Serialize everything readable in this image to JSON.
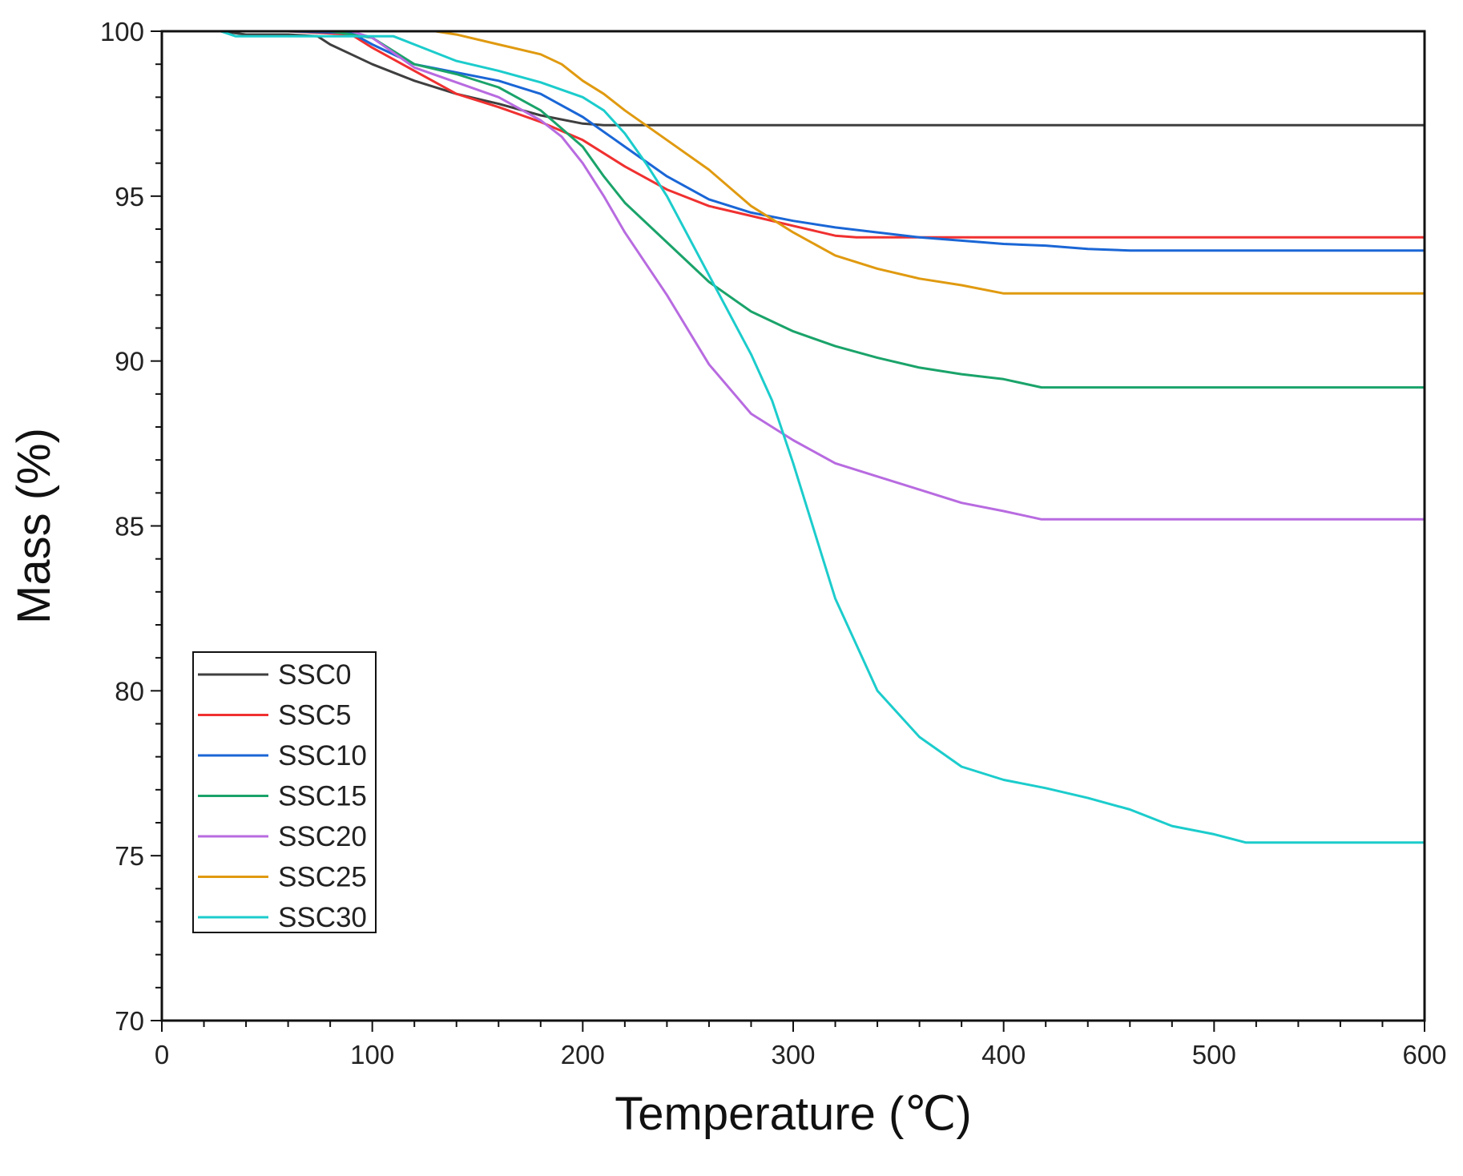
{
  "chart_data": {
    "type": "line",
    "title": "",
    "xlabel": "Temperature (℃)",
    "ylabel": "Mass (%)",
    "xlim": [
      0,
      600
    ],
    "ylim": [
      70,
      100
    ],
    "xticks": [
      0,
      100,
      200,
      300,
      400,
      500,
      600
    ],
    "yticks": [
      70,
      75,
      80,
      85,
      90,
      95,
      100
    ],
    "grid": false,
    "legend_position": "bottom-left",
    "series": [
      {
        "name": "SSC0",
        "color": "#3f3f3f",
        "x": [
          28,
          40,
          60,
          74,
          80,
          90,
          100,
          120,
          140,
          160,
          180,
          200,
          210,
          220,
          300,
          400,
          500,
          600
        ],
        "y": [
          100,
          99.9,
          99.9,
          99.85,
          99.6,
          99.3,
          99.0,
          98.5,
          98.1,
          97.8,
          97.45,
          97.2,
          97.15,
          97.15,
          97.15,
          97.15,
          97.15,
          97.15
        ]
      },
      {
        "name": "SSC5",
        "color": "#f03030",
        "x": [
          28,
          60,
          90,
          100,
          120,
          140,
          160,
          180,
          200,
          220,
          240,
          260,
          280,
          300,
          320,
          330,
          400,
          500,
          600
        ],
        "y": [
          100,
          100,
          99.9,
          99.5,
          98.8,
          98.1,
          97.7,
          97.25,
          96.7,
          95.9,
          95.2,
          94.7,
          94.4,
          94.1,
          93.8,
          93.75,
          93.75,
          93.75,
          93.75
        ]
      },
      {
        "name": "SSC10",
        "color": "#1a66d6",
        "x": [
          28,
          60,
          90,
          100,
          120,
          140,
          160,
          180,
          200,
          220,
          240,
          260,
          280,
          300,
          320,
          340,
          360,
          380,
          400,
          420,
          440,
          460,
          500,
          600
        ],
        "y": [
          100,
          100,
          99.95,
          99.6,
          99.0,
          98.75,
          98.5,
          98.1,
          97.4,
          96.5,
          95.6,
          94.9,
          94.5,
          94.25,
          94.05,
          93.9,
          93.75,
          93.65,
          93.55,
          93.5,
          93.4,
          93.35,
          93.35,
          93.35
        ]
      },
      {
        "name": "SSC15",
        "color": "#1aa36a",
        "x": [
          28,
          80,
          100,
          120,
          140,
          160,
          180,
          200,
          210,
          220,
          240,
          260,
          280,
          300,
          320,
          340,
          360,
          380,
          400,
          418,
          500,
          600
        ],
        "y": [
          100,
          100,
          99.8,
          99.0,
          98.7,
          98.3,
          97.6,
          96.5,
          95.6,
          94.8,
          93.6,
          92.4,
          91.5,
          90.9,
          90.45,
          90.1,
          89.8,
          89.6,
          89.45,
          89.2,
          89.2,
          89.2
        ]
      },
      {
        "name": "SSC20",
        "color": "#b86be0",
        "x": [
          28,
          90,
          100,
          120,
          140,
          160,
          180,
          190,
          200,
          210,
          220,
          240,
          260,
          280,
          300,
          320,
          340,
          360,
          380,
          400,
          418,
          500,
          600
        ],
        "y": [
          100,
          100,
          99.8,
          98.9,
          98.45,
          98.0,
          97.3,
          96.8,
          96.0,
          95.0,
          93.9,
          92.0,
          89.9,
          88.4,
          87.6,
          86.9,
          86.5,
          86.1,
          85.7,
          85.45,
          85.2,
          85.2,
          85.2
        ]
      },
      {
        "name": "SSC25",
        "color": "#e09a10",
        "x": [
          28,
          130,
          140,
          160,
          180,
          190,
          200,
          210,
          220,
          240,
          260,
          280,
          300,
          320,
          340,
          360,
          380,
          400,
          450,
          500,
          600
        ],
        "y": [
          100,
          100,
          99.9,
          99.6,
          99.3,
          99.0,
          98.5,
          98.1,
          97.6,
          96.7,
          95.8,
          94.7,
          93.9,
          93.2,
          92.8,
          92.5,
          92.3,
          92.05,
          92.05,
          92.05,
          92.05
        ]
      },
      {
        "name": "SSC30",
        "color": "#1ccccc",
        "x": [
          28,
          35,
          60,
          80,
          100,
          110,
          120,
          140,
          160,
          180,
          200,
          210,
          220,
          230,
          240,
          260,
          280,
          290,
          300,
          320,
          340,
          360,
          380,
          400,
          420,
          440,
          460,
          480,
          500,
          515,
          600
        ],
        "y": [
          100,
          99.85,
          99.85,
          99.85,
          99.85,
          99.85,
          99.6,
          99.1,
          98.8,
          98.45,
          98.0,
          97.6,
          96.9,
          96.0,
          95.0,
          92.6,
          90.2,
          88.8,
          86.9,
          82.8,
          80.0,
          78.6,
          77.7,
          77.3,
          77.05,
          76.75,
          76.4,
          75.9,
          75.65,
          75.4,
          75.4
        ]
      }
    ]
  }
}
